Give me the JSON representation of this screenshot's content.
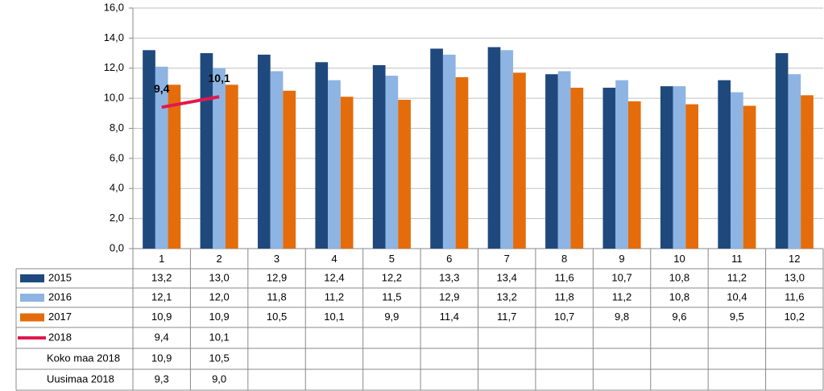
{
  "chart_data": {
    "type": "bar",
    "categories": [
      "1",
      "2",
      "3",
      "4",
      "5",
      "6",
      "7",
      "8",
      "9",
      "10",
      "11",
      "12"
    ],
    "ylim": [
      0,
      16
    ],
    "yticks": [
      {
        "value": 0,
        "label": "0,0"
      },
      {
        "value": 2,
        "label": "2,0"
      },
      {
        "value": 4,
        "label": "4,0"
      },
      {
        "value": 6,
        "label": "6,0"
      },
      {
        "value": 8,
        "label": "8,0"
      },
      {
        "value": 10,
        "label": "10,0"
      },
      {
        "value": 12,
        "label": "12,0"
      },
      {
        "value": 14,
        "label": "14,0"
      },
      {
        "value": 16,
        "label": "16,0"
      }
    ],
    "grid": true,
    "series": [
      {
        "name": "2015",
        "type": "bar",
        "color": "#1f497d",
        "values": [
          13.2,
          13.0,
          12.9,
          12.4,
          12.2,
          13.3,
          13.4,
          11.6,
          10.7,
          10.8,
          11.2,
          13.0
        ],
        "value_labels": [
          "13,2",
          "13,0",
          "12,9",
          "12,4",
          "12,2",
          "13,3",
          "13,4",
          "11,6",
          "10,7",
          "10,8",
          "11,2",
          "13,0"
        ]
      },
      {
        "name": "2016",
        "type": "bar",
        "color": "#8db4e2",
        "values": [
          12.1,
          12.0,
          11.8,
          11.2,
          11.5,
          12.9,
          13.2,
          11.8,
          11.2,
          10.8,
          10.4,
          11.6
        ],
        "value_labels": [
          "12,1",
          "12,0",
          "11,8",
          "11,2",
          "11,5",
          "12,9",
          "13,2",
          "11,8",
          "11,2",
          "10,8",
          "10,4",
          "11,6"
        ]
      },
      {
        "name": "2017",
        "type": "bar",
        "color": "#e46c0a",
        "values": [
          10.9,
          10.9,
          10.5,
          10.1,
          9.9,
          11.4,
          11.7,
          10.7,
          9.8,
          9.6,
          9.5,
          10.2
        ],
        "value_labels": [
          "10,9",
          "10,9",
          "10,5",
          "10,1",
          "9,9",
          "11,4",
          "11,7",
          "10,7",
          "9,8",
          "9,6",
          "9,5",
          "10,2"
        ]
      },
      {
        "name": "2018",
        "type": "line",
        "color": "#e0194e",
        "values": [
          9.4,
          10.1,
          null,
          null,
          null,
          null,
          null,
          null,
          null,
          null,
          null,
          null
        ],
        "value_labels": [
          "9,4",
          "10,1",
          null,
          null,
          null,
          null,
          null,
          null,
          null,
          null,
          null,
          null
        ]
      }
    ],
    "table_rows": [
      {
        "name": "Koko maa 2018",
        "values": [
          10.9,
          10.5,
          null,
          null,
          null,
          null,
          null,
          null,
          null,
          null,
          null,
          null
        ],
        "value_labels": [
          "10,9",
          "10,5",
          null,
          null,
          null,
          null,
          null,
          null,
          null,
          null,
          null,
          null
        ]
      },
      {
        "name": "Uusimaa 2018",
        "values": [
          9.3,
          9.0,
          null,
          null,
          null,
          null,
          null,
          null,
          null,
          null,
          null,
          null
        ],
        "value_labels": [
          "9,3",
          "9,0",
          null,
          null,
          null,
          null,
          null,
          null,
          null,
          null,
          null,
          null
        ]
      }
    ]
  }
}
